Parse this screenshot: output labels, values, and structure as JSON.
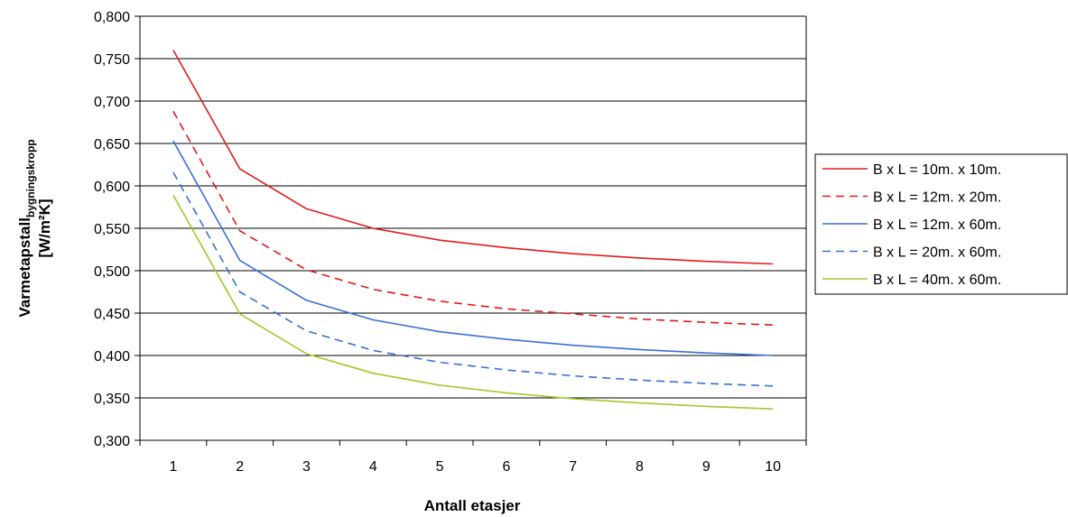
{
  "chart_data": {
    "type": "line",
    "title": "",
    "xlabel": "Antall etasjer",
    "ylabel": {
      "main": "Varmetapstall",
      "subscript": "bygningskropp",
      "unit": "[W/m²K]"
    },
    "x": [
      1,
      2,
      3,
      4,
      5,
      6,
      7,
      8,
      9,
      10
    ],
    "x_tick_labels": [
      "1",
      "2",
      "3",
      "4",
      "5",
      "6",
      "7",
      "8",
      "9",
      "10"
    ],
    "ylim": [
      0.3,
      0.8
    ],
    "y_ticks": [
      0.3,
      0.35,
      0.4,
      0.45,
      0.5,
      0.55,
      0.6,
      0.65,
      0.7,
      0.75,
      0.8
    ],
    "y_tick_labels": [
      "0,300",
      "0,350",
      "0,400",
      "0,450",
      "0,500",
      "0,550",
      "0,600",
      "0,650",
      "0,700",
      "0,750",
      "0,800"
    ],
    "grid": "horizontal",
    "legend_position": "right",
    "series": [
      {
        "name": "B x L = 10m. x 10m.",
        "color": "#e31a1c",
        "dash": "solid",
        "values": [
          0.76,
          0.62,
          0.573,
          0.55,
          0.536,
          0.527,
          0.52,
          0.515,
          0.511,
          0.508
        ]
      },
      {
        "name": "B x L = 12m. x 20m.",
        "color": "#e31a1c",
        "dash": "dashed",
        "values": [
          0.688,
          0.547,
          0.501,
          0.478,
          0.464,
          0.455,
          0.449,
          0.443,
          0.439,
          0.436
        ]
      },
      {
        "name": "B x L = 12m. x 60m.",
        "color": "#3a6fd8",
        "dash": "solid",
        "values": [
          0.653,
          0.512,
          0.465,
          0.442,
          0.428,
          0.419,
          0.412,
          0.407,
          0.403,
          0.4
        ]
      },
      {
        "name": "B x L = 20m. x 60m.",
        "color": "#3a6fd8",
        "dash": "dashed",
        "values": [
          0.616,
          0.475,
          0.429,
          0.406,
          0.392,
          0.383,
          0.376,
          0.371,
          0.367,
          0.364
        ]
      },
      {
        "name": "B x L = 40m. x 60m.",
        "color": "#9ccc2a",
        "dash": "solid",
        "values": [
          0.589,
          0.449,
          0.402,
          0.379,
          0.365,
          0.356,
          0.349,
          0.344,
          0.34,
          0.337
        ]
      }
    ]
  }
}
